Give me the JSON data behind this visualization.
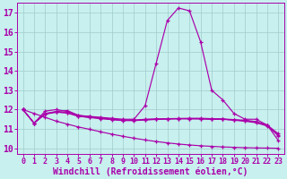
{
  "bg_color": "#c8f0ee",
  "line_color": "#aa00aa",
  "grid_color": "#a0cccc",
  "xlabel": "Windchill (Refroidissement éolien,°C)",
  "xlabel_fontsize": 7,
  "ytick_fontsize": 7,
  "xtick_fontsize": 6,
  "ylim": [
    9.7,
    17.5
  ],
  "xlim": [
    -0.5,
    23.5
  ],
  "yticks": [
    10,
    11,
    12,
    13,
    14,
    15,
    16,
    17
  ],
  "xticks": [
    0,
    1,
    2,
    3,
    4,
    5,
    6,
    7,
    8,
    9,
    10,
    11,
    12,
    13,
    14,
    15,
    16,
    17,
    18,
    19,
    20,
    21,
    22,
    23
  ],
  "curve_peak": [
    12.0,
    11.3,
    11.8,
    11.9,
    11.95,
    11.7,
    11.65,
    11.6,
    11.55,
    11.5,
    11.5,
    12.2,
    14.4,
    16.6,
    17.25,
    17.1,
    15.5,
    13.0,
    12.5,
    11.8,
    11.5,
    11.5,
    11.2,
    10.4
  ],
  "curve_flat1": [
    12.0,
    11.3,
    11.78,
    11.88,
    11.82,
    11.65,
    11.6,
    11.55,
    11.5,
    11.45,
    11.45,
    11.5,
    11.52,
    11.53,
    11.54,
    11.55,
    11.55,
    11.53,
    11.52,
    11.48,
    11.45,
    11.38,
    11.2,
    10.75
  ],
  "curve_flat2": [
    12.0,
    11.3,
    11.76,
    11.86,
    11.84,
    11.66,
    11.59,
    11.53,
    11.48,
    11.43,
    11.43,
    11.46,
    11.49,
    11.51,
    11.52,
    11.52,
    11.52,
    11.5,
    11.5,
    11.46,
    11.42,
    11.35,
    11.18,
    10.7
  ],
  "curve_flat3": [
    12.0,
    11.3,
    11.92,
    12.0,
    11.9,
    11.7,
    11.63,
    11.56,
    11.5,
    11.45,
    11.45,
    11.48,
    11.5,
    11.52,
    11.53,
    11.53,
    11.52,
    11.5,
    11.5,
    11.45,
    11.4,
    11.32,
    11.15,
    10.65
  ],
  "curve_diag": [
    12.0,
    11.8,
    11.6,
    11.4,
    11.25,
    11.1,
    10.98,
    10.85,
    10.73,
    10.62,
    10.52,
    10.43,
    10.35,
    10.28,
    10.22,
    10.17,
    10.13,
    10.1,
    10.07,
    10.05,
    10.03,
    10.02,
    10.01,
    10.0
  ]
}
